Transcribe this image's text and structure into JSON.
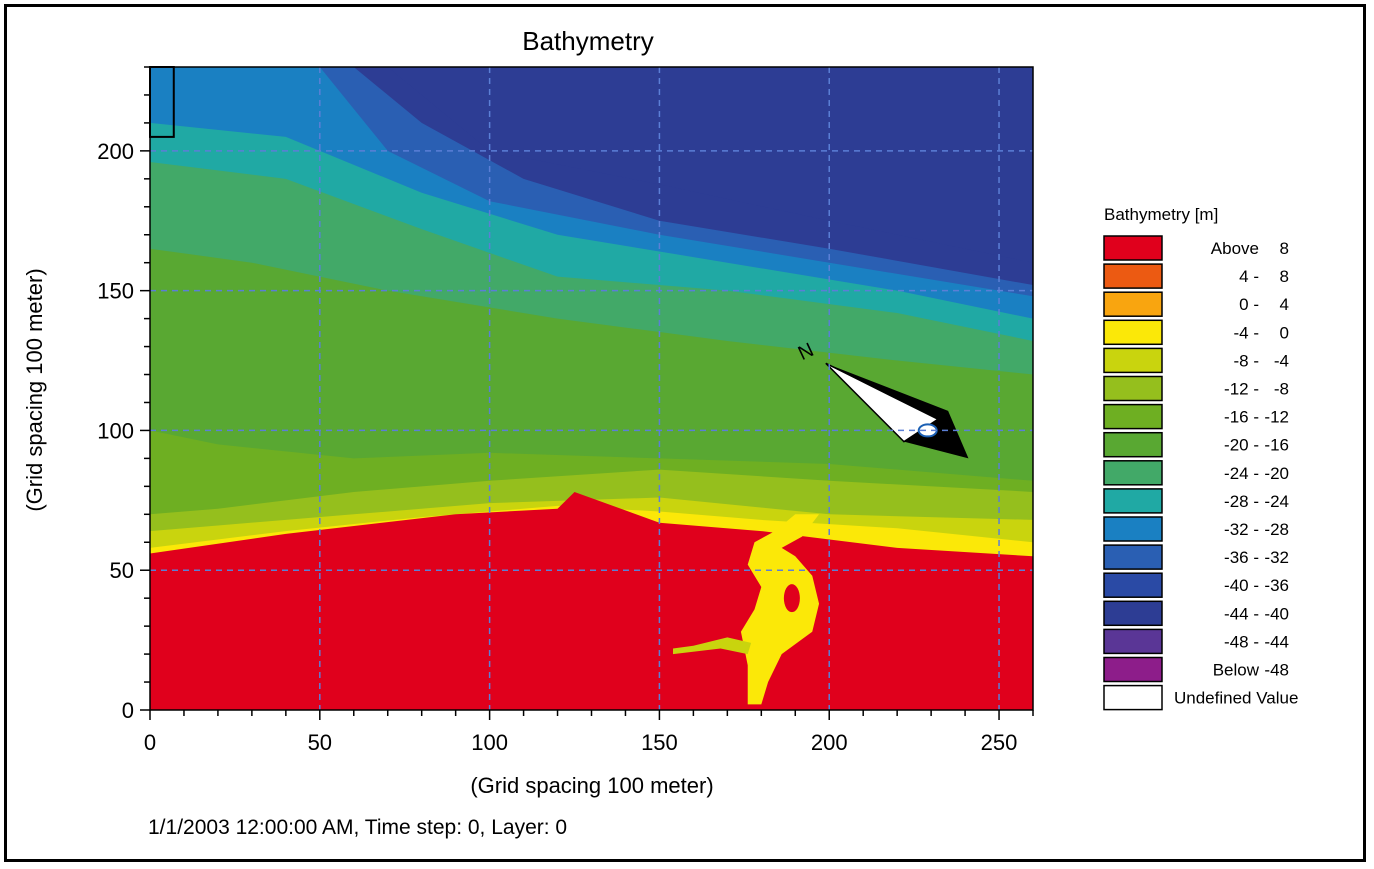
{
  "chart_data": {
    "type": "heatmap",
    "title": "Bathymetry",
    "xlabel": "(Grid spacing 100 meter)",
    "ylabel": "(Grid spacing 100 meter)",
    "xlim": [
      0,
      260
    ],
    "ylim": [
      0,
      230
    ],
    "x_ticks": [
      0,
      50,
      100,
      150,
      200,
      250
    ],
    "y_ticks": [
      0,
      50,
      100,
      150,
      200
    ],
    "grid": true,
    "legend_position": "right",
    "legend_title": "Bathymetry [m]",
    "legend": [
      {
        "label": "Above",
        "value": "8",
        "color": "#e0001c"
      },
      {
        "label": "4 -",
        "value": "8",
        "color": "#ec5a12"
      },
      {
        "label": "0 -",
        "value": "4",
        "color": "#f9a50f"
      },
      {
        "label": "-4 -",
        "value": "0",
        "color": "#fbe808"
      },
      {
        "label": "-8 -",
        "value": "-4",
        "color": "#c9d40e"
      },
      {
        "label": "-12 -",
        "value": "-8",
        "color": "#95bf1d"
      },
      {
        "label": "-16 -",
        "value": "-12",
        "color": "#6eaf22"
      },
      {
        "label": "-20 -",
        "value": "-16",
        "color": "#59a832"
      },
      {
        "label": "-24 -",
        "value": "-20",
        "color": "#42a968"
      },
      {
        "label": "-28 -",
        "value": "-24",
        "color": "#20a9a4"
      },
      {
        "label": "-32 -",
        "value": "-28",
        "color": "#1a80c2"
      },
      {
        "label": "-36 -",
        "value": "-32",
        "color": "#2a5fb3"
      },
      {
        "label": "-40 -",
        "value": "-36",
        "color": "#2a4aa5"
      },
      {
        "label": "-44 -",
        "value": "-40",
        "color": "#2d3d94"
      },
      {
        "label": "-48 -",
        "value": "-44",
        "color": "#5a3696"
      },
      {
        "label": "Below",
        "value": "-48",
        "color": "#8d1d8a"
      },
      {
        "label": "Undefined Value",
        "value": "",
        "color": "#ffffff"
      }
    ],
    "bands": [
      {
        "color": "#2d3d94",
        "profile": [
          [
            0,
            230
          ],
          [
            260,
            230
          ],
          [
            260,
            160
          ],
          [
            200,
            175
          ],
          [
            150,
            188
          ],
          [
            100,
            200
          ],
          [
            70,
            230
          ]
        ]
      },
      {
        "color": "#2a5fb3",
        "profile": [
          [
            0,
            230
          ],
          [
            260,
            230
          ],
          [
            260,
            152
          ],
          [
            200,
            165
          ],
          [
            150,
            175
          ],
          [
            110,
            190
          ],
          [
            80,
            210
          ],
          [
            60,
            230
          ]
        ]
      },
      {
        "color": "#1a80c2",
        "profile": [
          [
            0,
            230
          ],
          [
            260,
            230
          ],
          [
            260,
            148
          ],
          [
            200,
            160
          ],
          [
            150,
            170
          ],
          [
            100,
            182
          ],
          [
            70,
            200
          ],
          [
            50,
            230
          ]
        ]
      },
      {
        "color": "#20a9a4",
        "profile": [
          [
            0,
            230
          ],
          [
            260,
            230
          ],
          [
            260,
            140
          ],
          [
            220,
            150
          ],
          [
            170,
            160
          ],
          [
            120,
            170
          ],
          [
            80,
            185
          ],
          [
            40,
            205
          ],
          [
            0,
            210
          ]
        ]
      },
      {
        "color": "#42a968",
        "profile": [
          [
            0,
            230
          ],
          [
            260,
            230
          ],
          [
            260,
            132
          ],
          [
            220,
            142
          ],
          [
            170,
            150
          ],
          [
            120,
            155
          ],
          [
            80,
            172
          ],
          [
            40,
            190
          ],
          [
            0,
            196
          ]
        ]
      },
      {
        "color": "#59a832",
        "profile": [
          [
            0,
            230
          ],
          [
            260,
            230
          ],
          [
            260,
            120
          ],
          [
            220,
            125
          ],
          [
            170,
            132
          ],
          [
            120,
            140
          ],
          [
            70,
            150
          ],
          [
            30,
            160
          ],
          [
            0,
            165
          ]
        ]
      },
      {
        "color": "#6eaf22",
        "profile": [
          [
            0,
            230
          ],
          [
            260,
            230
          ],
          [
            260,
            82
          ],
          [
            200,
            88
          ],
          [
            150,
            90
          ],
          [
            100,
            92
          ],
          [
            60,
            90
          ],
          [
            20,
            95
          ],
          [
            0,
            100
          ]
        ]
      },
      {
        "color": "#95bf1d",
        "profile": [
          [
            0,
            230
          ],
          [
            260,
            230
          ],
          [
            260,
            78
          ],
          [
            200,
            82
          ],
          [
            150,
            86
          ],
          [
            100,
            82
          ],
          [
            60,
            78
          ],
          [
            20,
            72
          ],
          [
            0,
            70
          ]
        ]
      },
      {
        "color": "#c9d40e",
        "profile": [
          [
            0,
            230
          ],
          [
            260,
            230
          ],
          [
            260,
            68
          ],
          [
            200,
            70
          ],
          [
            150,
            76
          ],
          [
            100,
            74
          ],
          [
            60,
            70
          ],
          [
            20,
            66
          ],
          [
            0,
            64
          ]
        ]
      },
      {
        "color": "#fbe808",
        "profile": [
          [
            0,
            230
          ],
          [
            260,
            230
          ],
          [
            260,
            60
          ],
          [
            220,
            65
          ],
          [
            180,
            68
          ],
          [
            150,
            71
          ],
          [
            120,
            73
          ],
          [
            80,
            69
          ],
          [
            40,
            64
          ],
          [
            0,
            58
          ]
        ]
      },
      {
        "color": "#e0001c",
        "profile": [
          [
            0,
            230
          ],
          [
            260,
            230
          ],
          [
            260,
            55
          ],
          [
            220,
            58
          ],
          [
            180,
            64
          ],
          [
            150,
            67
          ],
          [
            125,
            78
          ],
          [
            120,
            72
          ],
          [
            90,
            70
          ],
          [
            40,
            63
          ],
          [
            0,
            56
          ]
        ]
      }
    ],
    "annotations": [
      {
        "text": "1/1/2003 12:00:00 AM, Time step: 0, Layer: 0"
      }
    ]
  },
  "status": "1/1/2003 12:00:00 AM, Time step: 0, Layer: 0"
}
